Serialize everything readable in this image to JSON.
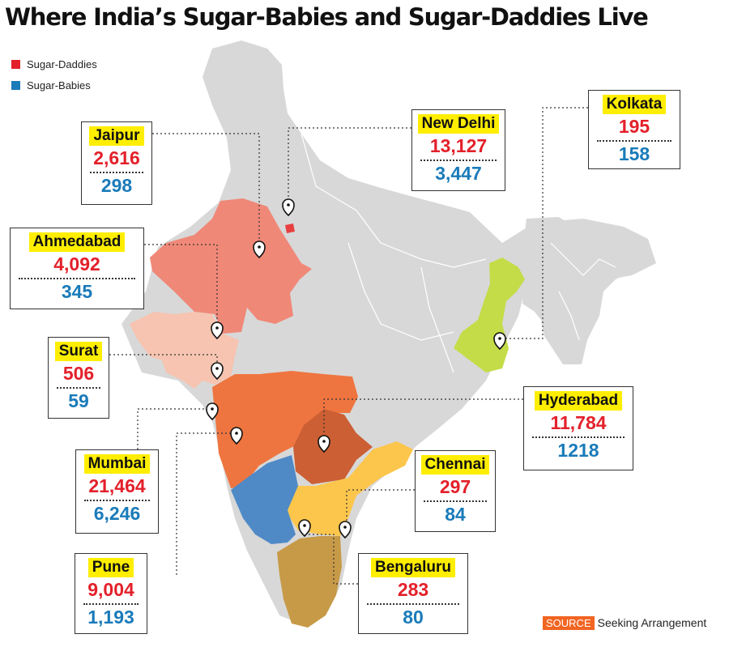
{
  "title": "Where India’s Sugar-Babies and Sugar-Daddies Live",
  "legend": {
    "daddies": {
      "label": "Sugar-Daddies",
      "color": "#e3202a"
    },
    "babies": {
      "label": "Sugar-Babies",
      "color": "#1a7bb9"
    }
  },
  "cities": {
    "jaipur": {
      "name": "Jaipur",
      "daddies": "2,616",
      "babies": "298"
    },
    "new_delhi": {
      "name": "New Delhi",
      "daddies": "13,127",
      "babies": "3,447"
    },
    "kolkata": {
      "name": "Kolkata",
      "daddies": "195",
      "babies": "158"
    },
    "ahmedabad": {
      "name": "Ahmedabad",
      "daddies": "4,092",
      "babies": "345"
    },
    "surat": {
      "name": "Surat",
      "daddies": "506",
      "babies": "59"
    },
    "hyderabad": {
      "name": "Hyderabad",
      "daddies": "11,784",
      "babies": "1218"
    },
    "mumbai": {
      "name": "Mumbai",
      "daddies": "21,464",
      "babies": "6,246"
    },
    "chennai": {
      "name": "Chennai",
      "daddies": "297",
      "babies": "84"
    },
    "pune": {
      "name": "Pune",
      "daddies": "9,004",
      "babies": "1,193"
    },
    "bengaluru": {
      "name": "Bengaluru",
      "daddies": "283",
      "babies": "80"
    }
  },
  "source": {
    "tag": "SOURCE",
    "text": "Seeking Arrangement",
    "tag_color": "#f26522"
  },
  "region_colors": {
    "base": "#d8d8d8",
    "rajasthan": "#f08878",
    "gujarat": "#f6c4b0",
    "maharashtra": "#ef7540",
    "telangana": "#cc5f34",
    "andhra": "#fcc64c",
    "karnataka": "#4f8ac6",
    "tamil_nadu": "#c79a48",
    "west_bengal": "#c4dc48",
    "delhi": "#e84040"
  }
}
